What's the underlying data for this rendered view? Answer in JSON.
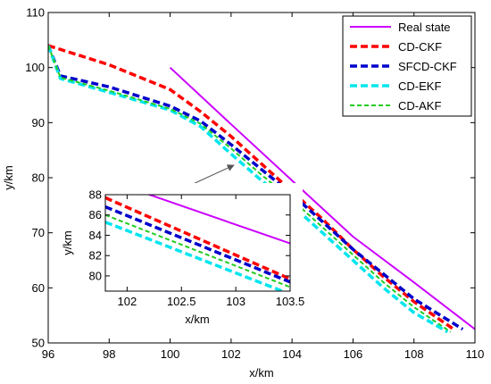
{
  "chart_data": [
    {
      "type": "line",
      "title": "",
      "xlabel": "x/km",
      "ylabel": "y/km",
      "xlim": [
        96,
        110
      ],
      "ylim": [
        50,
        110
      ],
      "xticks": [
        "96",
        "98",
        "100",
        "102",
        "104",
        "106",
        "108",
        "110"
      ],
      "yticks": [
        "50",
        "60",
        "70",
        "80",
        "90",
        "100",
        "110"
      ],
      "grid": false,
      "legend_position": "top-right",
      "series": [
        {
          "name": "Real state",
          "color": "#cc00ff",
          "style": "solid",
          "x": [
            100,
            102,
            104,
            106,
            108,
            110
          ],
          "y": [
            100,
            89.7,
            79.5,
            69.3,
            61.0,
            52.5
          ]
        },
        {
          "name": "CD-CKF",
          "color": "#ff0000",
          "style": "dashed",
          "x": [
            96,
            98,
            100,
            101,
            102,
            103,
            104,
            105,
            106,
            107,
            108,
            109.3
          ],
          "y": [
            104,
            100.5,
            96,
            92,
            87.5,
            82.5,
            77.5,
            72.5,
            67,
            62,
            57.5,
            52.5
          ]
        },
        {
          "name": "SFCD-CKF",
          "color": "#0000cc",
          "style": "dashed",
          "x": [
            96,
            96.4,
            98,
            100,
            101,
            102,
            103,
            104,
            105,
            106,
            107,
            108,
            109.6
          ],
          "y": [
            104,
            98.5,
            96.5,
            93,
            90.3,
            86,
            81.5,
            77,
            72,
            67,
            62.5,
            58,
            52.5
          ]
        },
        {
          "name": "CD-EKF",
          "color": "#00e5ee",
          "style": "dashed",
          "x": [
            96,
            96.4,
            98,
            100,
            101,
            102,
            103,
            104,
            105,
            106,
            107,
            108,
            109.1
          ],
          "y": [
            104,
            98.0,
            95.5,
            92.3,
            89.3,
            84.3,
            79.5,
            75,
            70,
            65,
            60,
            55.5,
            52
          ]
        },
        {
          "name": "CD-AKF",
          "color": "#22cc22",
          "style": "dashed",
          "x": [
            96,
            96.4,
            98,
            100,
            101,
            102,
            103,
            104,
            105,
            106,
            107,
            108,
            109.2
          ],
          "y": [
            104,
            98.2,
            95.8,
            92.5,
            89.8,
            85.3,
            80.5,
            76,
            71,
            66,
            61,
            56.5,
            52
          ]
        }
      ]
    },
    {
      "type": "line",
      "title": "",
      "xlabel": "x/km",
      "ylabel": "y/km",
      "xlim": [
        101.8,
        103.5
      ],
      "ylim": [
        78.5,
        88
      ],
      "xticks": [
        "102",
        "102.5",
        "103",
        "103.5"
      ],
      "yticks": [
        "80",
        "82",
        "84",
        "86",
        "88"
      ],
      "grid": false,
      "series": [
        {
          "name": "Real state",
          "color": "#cc00ff",
          "style": "solid",
          "x": [
            101.8,
            103.5
          ],
          "y": [
            89.5,
            83.2
          ]
        },
        {
          "name": "CD-CKF",
          "color": "#ff0000",
          "style": "dashed",
          "x": [
            101.8,
            103.5
          ],
          "y": [
            87.7,
            79.7
          ]
        },
        {
          "name": "SFCD-CKF",
          "color": "#0000cc",
          "style": "dashed",
          "x": [
            101.8,
            103.5
          ],
          "y": [
            86.8,
            79.4
          ]
        },
        {
          "name": "CD-EKF",
          "color": "#00e5ee",
          "style": "dashed",
          "x": [
            101.8,
            103.5
          ],
          "y": [
            85.3,
            78.2
          ]
        },
        {
          "name": "CD-AKF",
          "color": "#22cc22",
          "style": "dashed",
          "x": [
            101.8,
            103.5
          ],
          "y": [
            86.0,
            78.9
          ]
        }
      ]
    }
  ]
}
